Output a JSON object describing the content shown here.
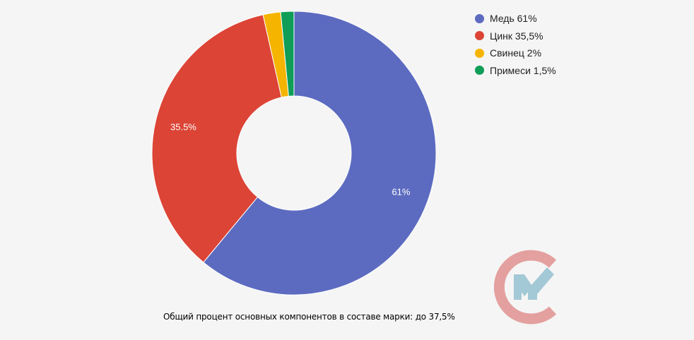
{
  "chart_data": {
    "type": "pie",
    "donut": true,
    "categories": [
      "Медь 61%",
      "Цинк 35,5%",
      "Свинец 2%",
      "Примеси 1,5%"
    ],
    "values": [
      61,
      35.5,
      2,
      1.5
    ],
    "colors": [
      "#5c6bc0",
      "#dc4436",
      "#f5b400",
      "#0f9d58"
    ],
    "data_labels": [
      "61%",
      "35.5%",
      "",
      ""
    ],
    "legend_placement": "top-right",
    "start_angle": "top, clockwise"
  },
  "caption": "Общий процент основных компонентов в составе марки: до 37,5%",
  "logo": {
    "colors": {
      "ring": "#e3a09f",
      "mark": "#a3c8d6"
    }
  }
}
